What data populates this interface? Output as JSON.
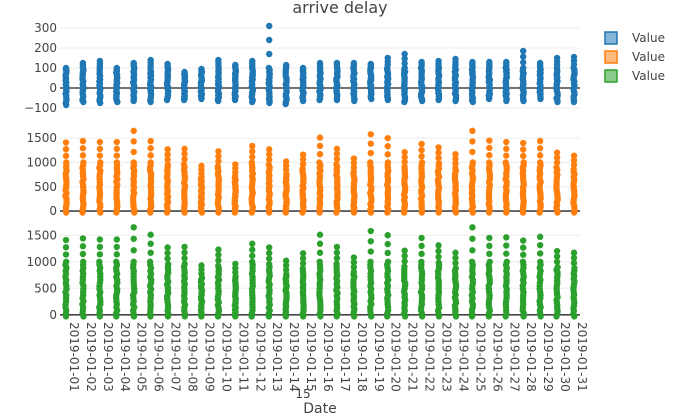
{
  "chart_data": {
    "type": "scatter",
    "title": "arrive delay",
    "xlabel": "Date",
    "x": [
      "2019-01-01",
      "2019-01-02",
      "2019-01-03",
      "2019-01-04",
      "2019-01-05",
      "2019-01-06",
      "2019-01-07",
      "2019-01-08",
      "2019-01-09",
      "2019-01-10",
      "2019-01-11",
      "2019-01-12",
      "2019-01-13",
      "2019-01-14",
      "2019-01-15",
      "2019-01-16",
      "2019-01-17",
      "2019-01-18",
      "2019-01-19",
      "2019-01-20",
      "2019-01-21",
      "2019-01-22",
      "2019-01-23",
      "2019-01-24",
      "2019-01-25",
      "2019-01-26",
      "2019-01-27",
      "2019-01-28",
      "2019-01-29",
      "2019-01-30",
      "2019-01-31"
    ],
    "x_tick_labels": [
      "2019-01-01",
      "2019-01-02",
      "2019-01-03",
      "2019-01-04",
      "2019-01-05",
      "2019-01-06",
      "2019-01-07",
      "2019-01-08",
      "2019-01-09",
      "2019-01-10",
      "2019-01-11",
      "2019-01-12",
      "2019-01-13",
      "2019-01-14",
      "2019-01-15",
      "2019-01-16",
      "2019-01-17",
      "2019-01-18",
      "2019-01-19",
      "2019-01-20",
      "2019-01-21",
      "2019-01-22",
      "2019-01-23",
      "2019-01-24",
      "2019-01-25",
      "2019-01-26",
      "2019-01-27",
      "2019-01-28",
      "2019-01-29",
      "2019-01-30",
      "2019-01-31"
    ],
    "x_axis_tick": "15",
    "legend_placement": "top-right",
    "grid": true,
    "series": [
      {
        "name": "Value",
        "color": "#1f77b4",
        "subplot": 0,
        "max": [
          100,
          125,
          135,
          100,
          125,
          140,
          120,
          80,
          95,
          140,
          115,
          135,
          310,
          115,
          100,
          125,
          125,
          125,
          120,
          150,
          170,
          130,
          135,
          145,
          130,
          130,
          130,
          185,
          125,
          150,
          155
        ],
        "min": [
          -85,
          -70,
          -75,
          -70,
          -65,
          -70,
          -60,
          -60,
          -55,
          -65,
          -60,
          -70,
          -75,
          -80,
          -65,
          -60,
          -60,
          -65,
          -55,
          -60,
          -70,
          -65,
          -60,
          -65,
          -70,
          -55,
          -65,
          -65,
          -55,
          -70,
          -70
        ]
      },
      {
        "name": "Value",
        "color": "#ff7f0e",
        "subplot": 1,
        "max": [
          1410,
          1440,
          1420,
          1420,
          1650,
          1440,
          1270,
          1280,
          930,
          1230,
          960,
          1340,
          1270,
          1020,
          1160,
          1510,
          1280,
          1080,
          1580,
          1500,
          1210,
          1380,
          1310,
          1170,
          1650,
          1450,
          1420,
          1400,
          1440,
          1200,
          1140
        ],
        "min": [
          -30,
          -30,
          -30,
          -30,
          -30,
          -30,
          -30,
          -30,
          -30,
          -30,
          -30,
          -30,
          -30,
          -30,
          -30,
          -30,
          -30,
          -30,
          -30,
          -30,
          -30,
          -30,
          -30,
          -30,
          -30,
          -30,
          -30,
          -30,
          -30,
          -30,
          -30
        ]
      },
      {
        "name": "Value",
        "color": "#2ca02c",
        "subplot": 2,
        "max": [
          1410,
          1440,
          1420,
          1420,
          1650,
          1510,
          1270,
          1280,
          930,
          1230,
          960,
          1340,
          1270,
          1020,
          1160,
          1510,
          1280,
          1080,
          1580,
          1500,
          1210,
          1450,
          1310,
          1170,
          1650,
          1450,
          1460,
          1400,
          1470,
          1200,
          1170
        ],
        "min": [
          -30,
          -30,
          -30,
          -30,
          -30,
          -30,
          -30,
          -30,
          -30,
          -30,
          -30,
          -30,
          -30,
          -30,
          -30,
          -30,
          -30,
          -30,
          -30,
          -30,
          -30,
          -30,
          -30,
          -30,
          -30,
          -30,
          -30,
          -30,
          -30,
          -30,
          -30
        ]
      }
    ],
    "subplots": [
      {
        "ylim": [
          -150,
          330
        ],
        "yticks": [
          -100,
          0,
          100,
          200,
          300
        ],
        "ytick_labels": [
          "−100",
          "0",
          "100",
          "200",
          "300"
        ]
      },
      {
        "ylim": [
          -60,
          1750
        ],
        "yticks": [
          0,
          500,
          1000,
          1500
        ],
        "ytick_labels": [
          "0",
          "500",
          "1000",
          "1500"
        ]
      },
      {
        "ylim": [
          -60,
          1750
        ],
        "yticks": [
          0,
          500,
          1000,
          1500
        ],
        "ytick_labels": [
          "0",
          "500",
          "1000",
          "1500"
        ]
      }
    ]
  }
}
